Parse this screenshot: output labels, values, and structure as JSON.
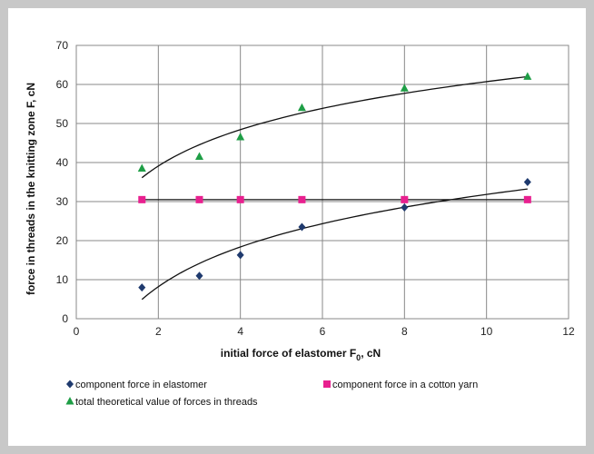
{
  "chart_data": {
    "type": "scatter",
    "title": "",
    "xlabel": "initial force of elastomer ",
    "xlabel_var": "F",
    "xlabel_sub": "0",
    "xlabel_unit": ", cN",
    "ylabel": "force in threads  in the knitting zone F, cN",
    "xlim": [
      0,
      12
    ],
    "ylim": [
      0,
      70
    ],
    "x_ticks": [
      "0",
      "2",
      "4",
      "6",
      "8",
      "10",
      "12"
    ],
    "y_ticks": [
      "0",
      "10",
      "20",
      "30",
      "40",
      "50",
      "60",
      "70"
    ],
    "grid": true,
    "legend_position": "bottom",
    "series": [
      {
        "name": "component force in elastomer",
        "marker": "diamond",
        "color": "#1f3a6e",
        "x": [
          1.6,
          3.0,
          4.0,
          5.5,
          8.0,
          11.0
        ],
        "y": [
          8.0,
          11.0,
          16.3,
          23.5,
          28.5,
          35.0
        ],
        "trendline": "logarithmic"
      },
      {
        "name": "component force in a cotton yarn",
        "marker": "square",
        "color": "#e8208f",
        "x": [
          1.6,
          3.0,
          4.0,
          5.5,
          8.0,
          11.0
        ],
        "y": [
          30.5,
          30.5,
          30.5,
          30.5,
          30.5,
          30.5
        ],
        "trendline": "linear"
      },
      {
        "name": "total theoretical value of forces in threads",
        "marker": "triangle",
        "color": "#1e9e46",
        "x": [
          1.6,
          3.0,
          4.0,
          5.5,
          8.0,
          11.0
        ],
        "y": [
          38.5,
          41.5,
          46.5,
          54.0,
          59.0,
          62.0
        ],
        "trendline": "logarithmic"
      }
    ]
  }
}
